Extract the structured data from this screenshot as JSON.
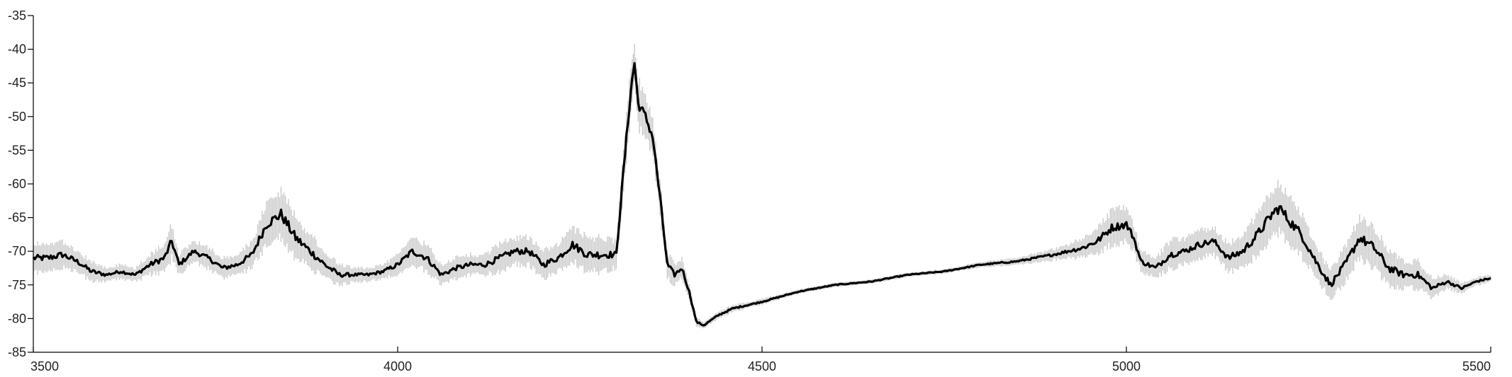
{
  "chart_data": {
    "type": "line",
    "title": "",
    "xlabel": "",
    "ylabel": "",
    "xlim": [
      3500,
      5500
    ],
    "ylim": [
      -85,
      -35
    ],
    "xticks": [
      3500,
      4000,
      4500,
      5000,
      5500
    ],
    "yticks": [
      -35,
      -40,
      -45,
      -50,
      -55,
      -60,
      -65,
      -70,
      -75,
      -80,
      -85
    ],
    "grid": false,
    "legend": "none",
    "colors": {
      "mean_line": "#000000",
      "band": "#c8c8c8",
      "axis": "#000000"
    },
    "series": [
      {
        "style": "thick-black-line-with-gray-variability-band",
        "x": [
          3500,
          3520,
          3540,
          3560,
          3580,
          3600,
          3620,
          3640,
          3660,
          3680,
          3690,
          3700,
          3720,
          3740,
          3760,
          3780,
          3800,
          3820,
          3840,
          3860,
          3880,
          3900,
          3920,
          3940,
          3960,
          3980,
          4000,
          4020,
          4040,
          4060,
          4080,
          4100,
          4120,
          4140,
          4160,
          4180,
          4200,
          4220,
          4240,
          4260,
          4280,
          4300,
          4310,
          4320,
          4325,
          4330,
          4340,
          4350,
          4360,
          4370,
          4380,
          4390,
          4400,
          4410,
          4420,
          4440,
          4460,
          4480,
          4500,
          4550,
          4600,
          4650,
          4700,
          4750,
          4800,
          4850,
          4900,
          4920,
          4940,
          4960,
          4980,
          5000,
          5010,
          5020,
          5040,
          5060,
          5080,
          5100,
          5120,
          5140,
          5160,
          5180,
          5200,
          5210,
          5220,
          5240,
          5260,
          5280,
          5300,
          5320,
          5340,
          5360,
          5380,
          5400,
          5420,
          5440,
          5460,
          5480,
          5500
        ],
        "y": [
          -71,
          -71,
          -70.5,
          -71.5,
          -73,
          -73.5,
          -73,
          -73.5,
          -72,
          -71,
          -68.5,
          -72,
          -70,
          -71,
          -72.5,
          -72,
          -70.5,
          -66,
          -64.5,
          -68,
          -70,
          -72,
          -73.5,
          -73.5,
          -73.5,
          -73,
          -72,
          -70,
          -71,
          -73.5,
          -72.5,
          -72,
          -72,
          -71,
          -70,
          -70,
          -72,
          -71,
          -69,
          -70.5,
          -70.5,
          -70.5,
          -58,
          -46,
          -42,
          -48,
          -50,
          -53,
          -62,
          -72,
          -73.5,
          -72.5,
          -76,
          -80.5,
          -81,
          -79.5,
          -78.5,
          -78,
          -77.5,
          -76,
          -75,
          -74.5,
          -73.5,
          -73,
          -72,
          -71.5,
          -70.5,
          -70,
          -69.5,
          -68.5,
          -66.5,
          -66,
          -68,
          -71.5,
          -72.5,
          -70.5,
          -70,
          -69,
          -68.5,
          -71,
          -70,
          -67.5,
          -64.5,
          -63.5,
          -65,
          -67.5,
          -71.5,
          -75,
          -72,
          -68,
          -69.5,
          -72.5,
          -73.5,
          -73.5,
          -75.5,
          -74.5,
          -75.5,
          -74.5,
          -74
        ],
        "spread": [
          2,
          2,
          2,
          1.5,
          1.5,
          1,
          1,
          1,
          1.5,
          2,
          2.5,
          1.5,
          1.5,
          1.5,
          1.5,
          1.5,
          2,
          3,
          3.5,
          3,
          2.5,
          2,
          1.5,
          1,
          1,
          1,
          1.5,
          2,
          2,
          1.5,
          1.5,
          1.5,
          1.5,
          2,
          2,
          2,
          2,
          2,
          2.5,
          2.5,
          2.5,
          2,
          3,
          3.5,
          3.5,
          3.5,
          3,
          3,
          2.5,
          2,
          1.5,
          1.5,
          1,
          0.6,
          0.5,
          0.5,
          0.5,
          0.4,
          0.4,
          0.3,
          0.3,
          0.3,
          0.3,
          0.3,
          0.4,
          0.5,
          0.8,
          1,
          1.5,
          2,
          2.5,
          2.5,
          2,
          1.5,
          1.5,
          2,
          2,
          2,
          2,
          2,
          2.5,
          3,
          3.5,
          3.5,
          3.5,
          3,
          2.5,
          2,
          2.5,
          3,
          3,
          2.5,
          2,
          2,
          1.5,
          1,
          0.8,
          0.6,
          0.5
        ]
      }
    ]
  }
}
